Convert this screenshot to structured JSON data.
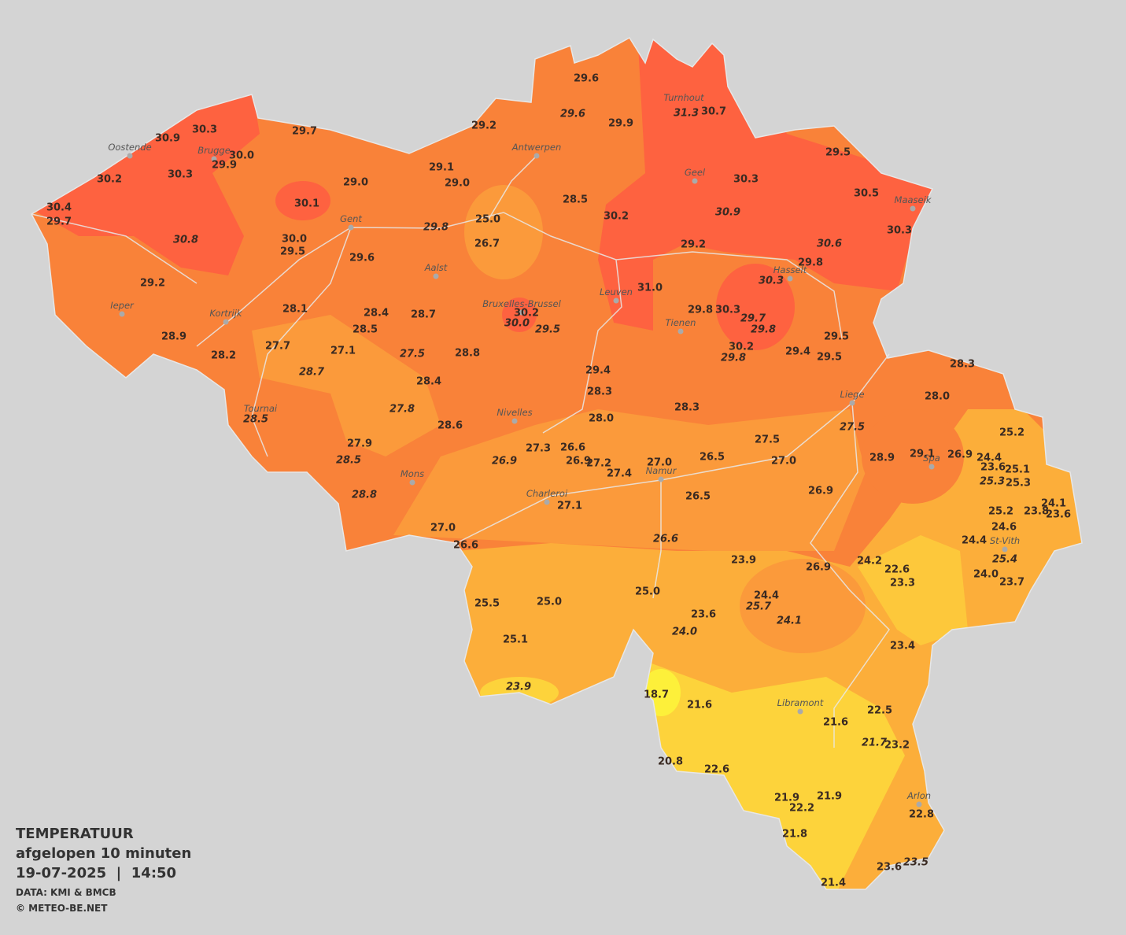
{
  "legend": {
    "title": "TEMPERATUUR",
    "subtitle": "afgelopen 10 minuten",
    "datetime": "19-07-2025  |  14:50",
    "source": "DATA: KMI & BMCB",
    "credit": "© METEO-BE.NET"
  },
  "cities": [
    "Oostende",
    "Brugge",
    "Gent",
    "Ieper",
    "Kortrijk",
    "Aalst",
    "Antwerpen",
    "Bruxelles-Brussel",
    "Leuven",
    "Tienen",
    "Turnhout",
    "Geel",
    "Maaseik",
    "Hasselt",
    "Liege",
    "Tournai",
    "Nivelles",
    "Mons",
    "Charleroi",
    "Namur",
    "Spa",
    "St-Vith",
    "Libramont",
    "Arlon"
  ],
  "readings": [
    30.3,
    30.9,
    29.7,
    {
      "value": 30,
      "label": "30.0"
    },
    29.9,
    30.2,
    30.3,
    30.4,
    29.7,
    30.8,
    29.2,
    28.9,
    30.1,
    {
      "value": 29,
      "label": "29.0"
    },
    {
      "value": 30,
      "label": "30.0"
    },
    29.5,
    29.6,
    28.1,
    27.7,
    28.2,
    27.1,
    28.7,
    28.4,
    28.5,
    28.7,
    27.5,
    28.8,
    28.4,
    27.8,
    28.6,
    27.9,
    28.5,
    28.5,
    28.8,
    29.2,
    29.1,
    {
      "value": 29,
      "label": "29.0"
    },
    29.8,
    {
      "value": 25,
      "label": "25.0"
    },
    26.7,
    29.6,
    29.6,
    29.9,
    28.5,
    30.2,
    {
      "value": 30,
      "label": "30.0"
    },
    29.5,
    31.3,
    30.7,
    29.5,
    30.3,
    30.9,
    30.5,
    30.2,
    29.2,
    30.6,
    30.3,
    29.8,
    30.3,
    {
      "value": 31,
      "label": "31.0"
    },
    29.8,
    30.3,
    29.7,
    29.8,
    30.2,
    29.8,
    29.4,
    29.5,
    29.5,
    29.4,
    28.3,
    {
      "value": 28,
      "label": "28.0"
    },
    28.3,
    28.3,
    {
      "value": 28,
      "label": "28.0"
    },
    27.5,
    27.5,
    {
      "value": 27,
      "label": "27.0"
    },
    26.5,
    {
      "value": 27,
      "label": "27.0"
    },
    26.6,
    26.9,
    27.2,
    27.4,
    27.3,
    26.9,
    26.5,
    26.9,
    28.9,
    29.1,
    26.9,
    25.2,
    24.4,
    23.6,
    25.1,
    25.3,
    25.3,
    24.1,
    23.8,
    23.6,
    25.2,
    24.6,
    24.4,
    25.4,
    {
      "value": 24,
      "label": "24.0"
    },
    23.7,
    24.2,
    22.6,
    23.3,
    27.1,
    {
      "value": 27,
      "label": "27.0"
    },
    26.6,
    26.6,
    23.9,
    26.9,
    {
      "value": 25,
      "label": "25.0"
    },
    24.4,
    25.7,
    24.1,
    23.6,
    {
      "value": 24,
      "label": "24.0"
    },
    25.5,
    {
      "value": 25,
      "label": "25.0"
    },
    25.1,
    23.9,
    23.4,
    18.7,
    21.6,
    22.5,
    21.6,
    21.7,
    23.2,
    20.8,
    22.6,
    21.9,
    22.2,
    21.9,
    22.8,
    21.8,
    23.6,
    23.5,
    21.4
  ]
}
